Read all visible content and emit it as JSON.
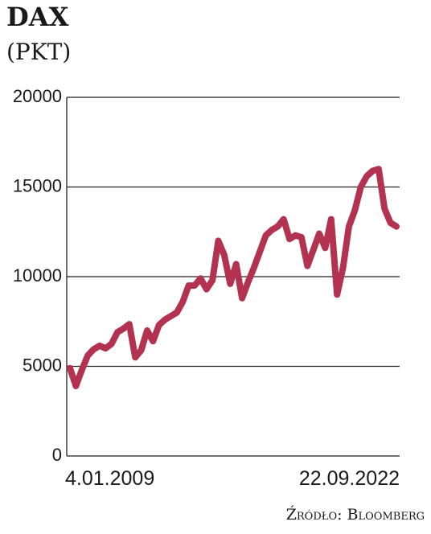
{
  "chart_data": {
    "type": "line",
    "title": "DAX",
    "subtitle": "(PKT)",
    "source": "Źródło: Bloomberg",
    "categories": [
      "4.01.2009",
      null,
      null,
      null,
      null,
      null,
      null,
      null,
      null,
      null,
      null,
      null,
      null,
      null,
      null,
      null,
      null,
      null,
      null,
      null,
      null,
      null,
      null,
      null,
      null,
      null,
      null,
      null,
      null,
      null,
      null,
      null,
      null,
      null,
      null,
      null,
      null,
      null,
      null,
      null,
      null,
      null,
      null,
      null,
      null,
      null,
      null,
      null,
      null,
      null,
      null,
      null,
      null,
      null,
      null,
      "22.09.2022"
    ],
    "series": [
      {
        "name": "DAX",
        "color": "#b2324f",
        "values": [
          4900,
          3900,
          4800,
          5600,
          5950,
          6150,
          6000,
          6250,
          6900,
          7100,
          7350,
          5500,
          5900,
          7000,
          6400,
          7300,
          7600,
          7800,
          8000,
          8600,
          9500,
          9500,
          9900,
          9300,
          9800,
          12000,
          11200,
          9600,
          10700,
          8800,
          9700,
          10500,
          11400,
          12300,
          12600,
          12800,
          13200,
          12100,
          12300,
          12200,
          10600,
          11500,
          12400,
          11600,
          13200,
          9000,
          10500,
          12800,
          13700,
          15000,
          15600,
          15900,
          16000,
          13800,
          13000,
          12800
        ]
      }
    ],
    "ylim": [
      0,
      20000
    ],
    "yticks": [
      0,
      5000,
      10000,
      15000,
      20000
    ],
    "grid": true
  }
}
